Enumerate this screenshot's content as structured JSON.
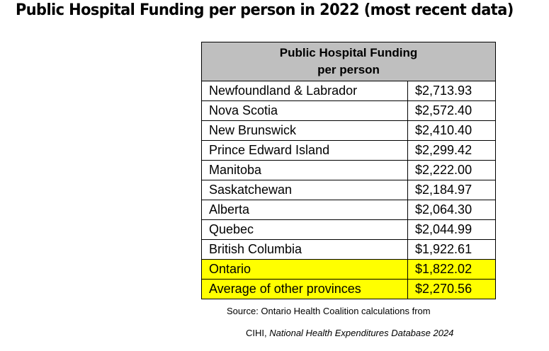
{
  "title": "Public Hospital Funding per person in 2022 (most recent data)",
  "chart_data": {
    "type": "table",
    "header": {
      "line1": "Public Hospital Funding",
      "line2": "per person"
    },
    "rows": [
      {
        "province": "Newfoundland & Labrador",
        "value_text": "$2,713.93",
        "value": 2713.93,
        "highlight": false
      },
      {
        "province": "Nova Scotia",
        "value_text": "$2,572.40",
        "value": 2572.4,
        "highlight": false
      },
      {
        "province": "New Brunswick",
        "value_text": "$2,410.40",
        "value": 2410.4,
        "highlight": false
      },
      {
        "province": "Prince Edward Island",
        "value_text": "$2,299.42",
        "value": 2299.42,
        "highlight": false
      },
      {
        "province": "Manitoba",
        "value_text": "$2,222.00",
        "value": 2222.0,
        "highlight": false
      },
      {
        "province": "Saskatchewan",
        "value_text": "$2,184.97",
        "value": 2184.97,
        "highlight": false
      },
      {
        "province": "Alberta",
        "value_text": "$2,064.30",
        "value": 2064.3,
        "highlight": false
      },
      {
        "province": "Quebec",
        "value_text": "$2,044.99",
        "value": 2044.99,
        "highlight": false
      },
      {
        "province": "British Columbia",
        "value_text": "$1,922.61",
        "value": 1922.61,
        "highlight": false
      },
      {
        "province": "Ontario",
        "value_text": "$1,822.02",
        "value": 1822.02,
        "highlight": true
      },
      {
        "province": "Average of other provinces",
        "value_text": "$2,270.56",
        "value": 2270.56,
        "highlight": true
      }
    ],
    "highlight_color": "#ffff00",
    "header_color": "#bfbfbf"
  },
  "source": {
    "line1": "Source: Ontario Health Coalition calculations from",
    "line2_prefix": "CIHI, ",
    "line2_italic": "National Health Expenditures Database 2024"
  }
}
